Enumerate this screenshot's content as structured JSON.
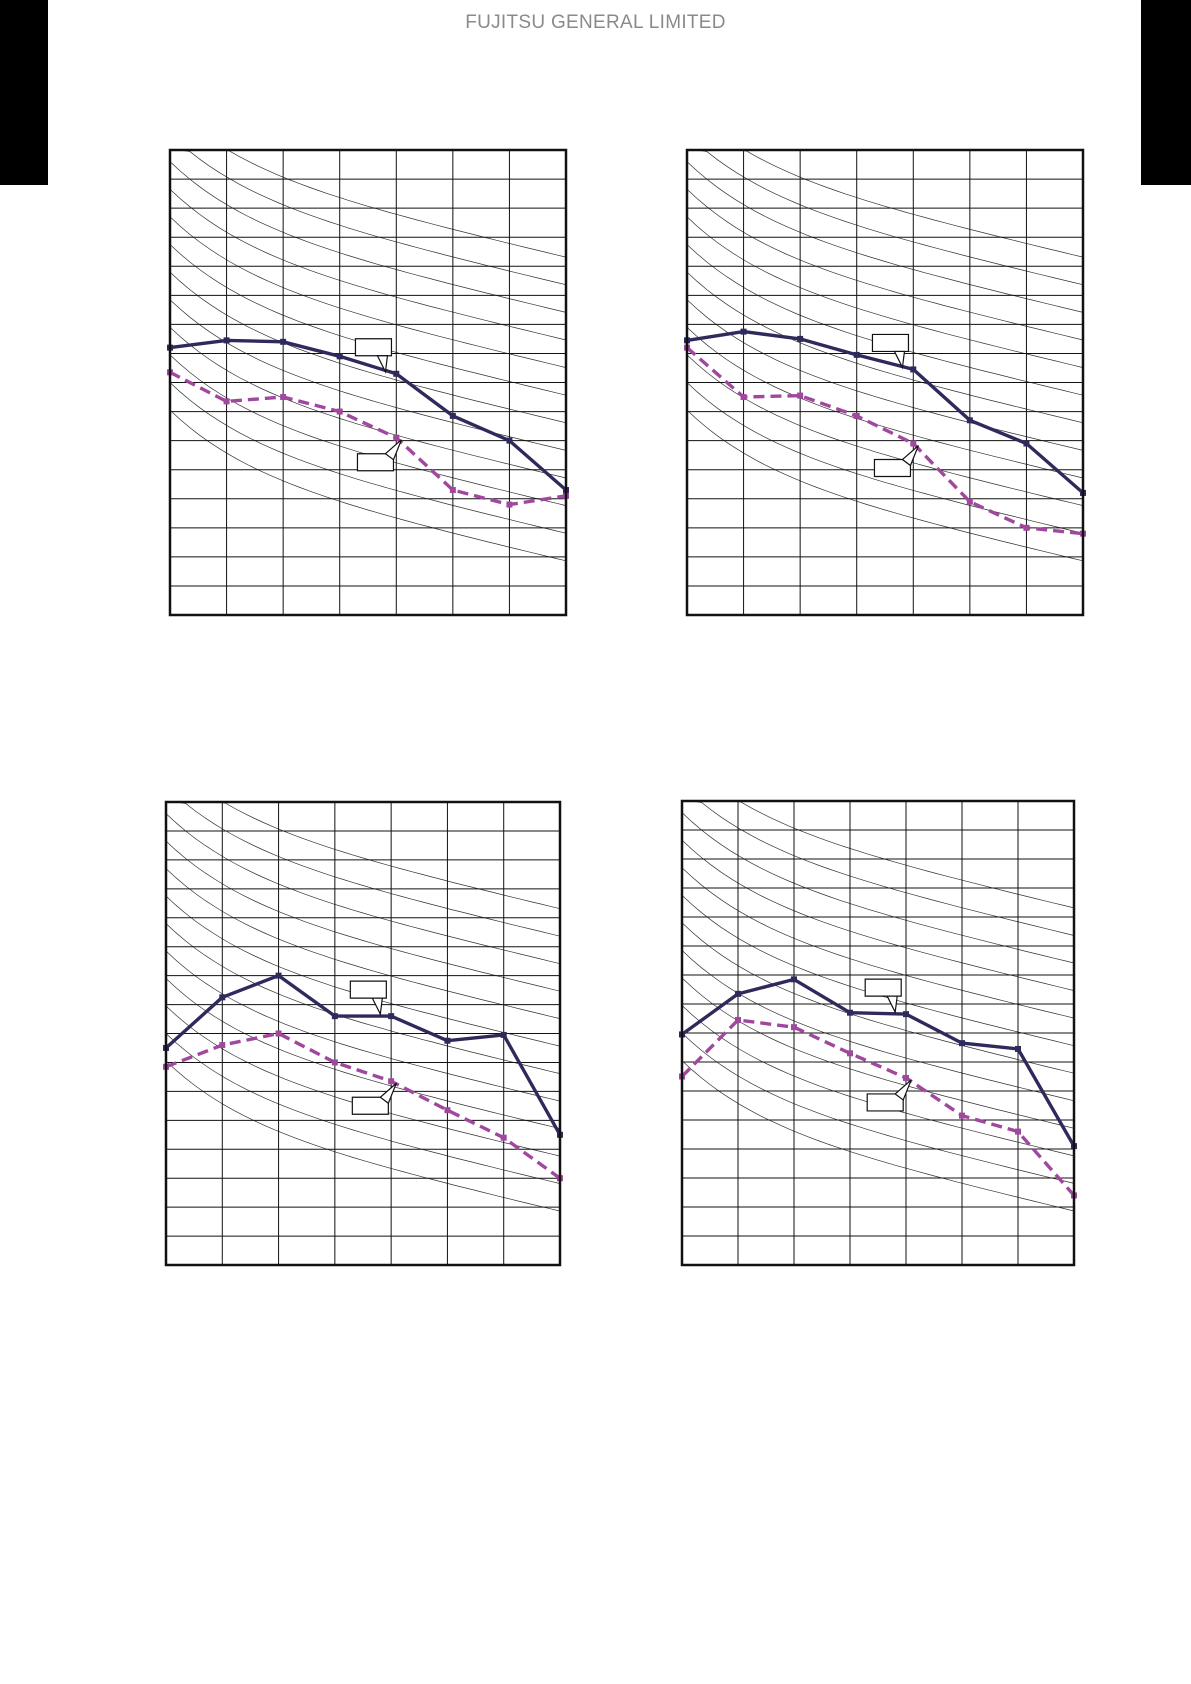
{
  "header": {
    "brand": "FUJITSU GENERAL LIMITED"
  },
  "colors": {
    "solid_series": "#2e2b5c",
    "dashed_series": "#a0479e",
    "grid": "#111111",
    "noise_curves": "#333333",
    "page_tabs": "#000000"
  },
  "chart_data": [
    {
      "type": "line",
      "xlim": [
        0,
        7
      ],
      "ylim": [
        0,
        16
      ],
      "grid": true,
      "noise_rating_curves": true,
      "series": [
        {
          "style": "solid",
          "x": [
            0,
            1,
            2,
            3,
            4,
            5,
            6,
            7
          ],
          "y": [
            9.2,
            9.45,
            9.4,
            8.9,
            8.3,
            6.85,
            6.0,
            4.3
          ]
        },
        {
          "style": "dashed",
          "x": [
            0,
            1,
            2,
            3,
            4,
            5,
            6,
            7
          ],
          "y": [
            8.35,
            7.35,
            7.5,
            7.0,
            6.1,
            4.3,
            3.8,
            4.1
          ]
        }
      ],
      "callouts": [
        {
          "series": "solid",
          "label": ""
        },
        {
          "series": "dashed",
          "label": ""
        }
      ]
    },
    {
      "type": "line",
      "xlim": [
        0,
        7
      ],
      "ylim": [
        0,
        16
      ],
      "grid": true,
      "noise_rating_curves": true,
      "series": [
        {
          "style": "solid",
          "x": [
            0,
            1,
            2,
            3,
            4,
            5,
            6,
            7
          ],
          "y": [
            9.45,
            9.75,
            9.5,
            8.95,
            8.45,
            6.7,
            5.9,
            4.2
          ]
        },
        {
          "style": "dashed",
          "x": [
            0,
            1,
            2,
            3,
            4,
            5,
            6,
            7
          ],
          "y": [
            9.2,
            7.5,
            7.55,
            6.85,
            5.9,
            3.9,
            3.0,
            2.8
          ]
        }
      ],
      "callouts": [
        {
          "series": "solid",
          "label": ""
        },
        {
          "series": "dashed",
          "label": ""
        }
      ]
    },
    {
      "type": "line",
      "xlim": [
        0,
        7
      ],
      "ylim": [
        0,
        16
      ],
      "grid": true,
      "noise_rating_curves": true,
      "series": [
        {
          "style": "solid",
          "x": [
            0,
            1,
            2,
            3,
            4,
            5,
            6,
            7
          ],
          "y": [
            7.5,
            9.25,
            10.0,
            8.6,
            8.6,
            7.75,
            7.95,
            4.5
          ]
        },
        {
          "style": "dashed",
          "x": [
            0,
            1,
            2,
            3,
            4,
            5,
            6,
            7
          ],
          "y": [
            6.85,
            7.6,
            8.0,
            7.0,
            6.35,
            5.35,
            4.4,
            3.0
          ]
        }
      ],
      "callouts": [
        {
          "series": "solid",
          "label": ""
        },
        {
          "series": "dashed",
          "label": ""
        }
      ]
    },
    {
      "type": "line",
      "xlim": [
        0,
        7
      ],
      "ylim": [
        0,
        16
      ],
      "grid": true,
      "noise_rating_curves": true,
      "series": [
        {
          "style": "solid",
          "x": [
            0,
            1,
            2,
            3,
            4,
            5,
            6,
            7
          ],
          "y": [
            7.95,
            9.35,
            9.85,
            8.7,
            8.65,
            7.65,
            7.45,
            4.1
          ]
        },
        {
          "style": "dashed",
          "x": [
            0,
            1,
            2,
            3,
            4,
            5,
            6,
            7
          ],
          "y": [
            6.5,
            8.45,
            8.2,
            7.3,
            6.45,
            5.15,
            4.6,
            2.4
          ]
        }
      ],
      "callouts": [
        {
          "series": "solid",
          "label": ""
        },
        {
          "series": "dashed",
          "label": ""
        }
      ]
    }
  ]
}
